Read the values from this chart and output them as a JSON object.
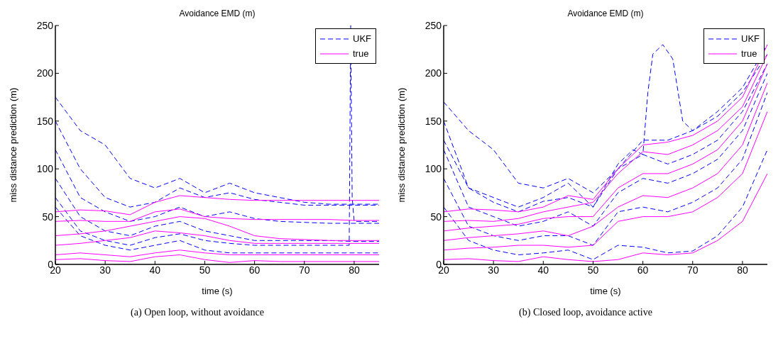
{
  "chart_data": [
    {
      "type": "line",
      "title": "Avoidance EMD (m)",
      "xlabel": "time (s)",
      "ylabel": "miss distance prediction (m)",
      "xlim": [
        20,
        85
      ],
      "xticks": [
        20,
        30,
        40,
        50,
        60,
        70,
        80
      ],
      "ylim": [
        0,
        250
      ],
      "yticks": [
        0,
        50,
        100,
        150,
        200,
        250
      ],
      "legend": "top right",
      "annotations": [
        "(a)  Open loop, without avoidance"
      ],
      "x": [
        20,
        25,
        30,
        35,
        40,
        45,
        50,
        55,
        60,
        65,
        70,
        75,
        80,
        85
      ],
      "series": [
        {
          "name": "UKF",
          "color": "#0000ff",
          "line_style": "dashed",
          "values": [
            175,
            140,
            125,
            90,
            80,
            90,
            75,
            85,
            75,
            70,
            65,
            63,
            63,
            63
          ]
        },
        {
          "color": "#0000ff",
          "line_style": "dashed",
          "values": [
            150,
            100,
            70,
            60,
            65,
            80,
            70,
            75,
            68,
            65,
            62,
            62,
            62,
            62
          ]
        },
        {
          "color": "#0000ff",
          "line_style": "dashed",
          "values": [
            120,
            70,
            55,
            45,
            50,
            60,
            50,
            55,
            48,
            45,
            44,
            43,
            43,
            43
          ]
        },
        {
          "color": "#0000ff",
          "line_style": "dashed",
          "values": [
            90,
            50,
            35,
            30,
            40,
            45,
            35,
            30,
            25,
            25,
            25,
            25,
            24,
            24
          ]
        },
        {
          "color": "#0000ff",
          "line_style": "dashed",
          "values": [
            60,
            30,
            20,
            15,
            20,
            25,
            15,
            12,
            12,
            12,
            12,
            12,
            12,
            12
          ]
        },
        {
          "color": "#0000ff",
          "line_style": "dashed",
          "x": [
            20,
            25,
            30,
            35,
            40,
            45,
            50,
            55,
            60,
            65,
            70,
            75,
            79,
            79.3,
            79.6,
            80,
            85
          ],
          "values": [
            70,
            35,
            25,
            20,
            28,
            32,
            25,
            22,
            20,
            20,
            20,
            20,
            20,
            250,
            70,
            45,
            45
          ]
        },
        {
          "name": "true",
          "color": "#ff00ff",
          "line_style": "solid",
          "values": [
            55,
            57,
            56,
            52,
            65,
            72,
            70,
            68,
            67,
            67,
            67,
            67,
            67,
            67
          ]
        },
        {
          "color": "#ff00ff",
          "line_style": "solid",
          "values": [
            45,
            46,
            45,
            45,
            55,
            58,
            50,
            48,
            47,
            47,
            47,
            47,
            46,
            46
          ]
        },
        {
          "color": "#ff00ff",
          "line_style": "solid",
          "values": [
            30,
            32,
            35,
            40,
            45,
            50,
            48,
            40,
            30,
            27,
            26,
            25,
            25,
            25
          ]
        },
        {
          "color": "#ff00ff",
          "line_style": "solid",
          "values": [
            20,
            22,
            25,
            28,
            35,
            33,
            30,
            25,
            22,
            22,
            22,
            22,
            22,
            22
          ]
        },
        {
          "color": "#ff00ff",
          "line_style": "solid",
          "values": [
            10,
            12,
            10,
            8,
            12,
            15,
            12,
            10,
            10,
            10,
            10,
            10,
            10,
            10
          ]
        },
        {
          "color": "#ff00ff",
          "line_style": "solid",
          "values": [
            5,
            6,
            4,
            3,
            8,
            10,
            5,
            2,
            4,
            3,
            3,
            3,
            3,
            3
          ]
        }
      ]
    },
    {
      "type": "line",
      "title": "Avoidance EMD (m)",
      "xlabel": "time (s)",
      "ylabel": "miss distance prediction (m)",
      "xlim": [
        20,
        85
      ],
      "xticks": [
        20,
        30,
        40,
        50,
        60,
        70,
        80
      ],
      "ylim": [
        0,
        250
      ],
      "yticks": [
        0,
        50,
        100,
        150,
        200,
        250
      ],
      "legend": "top right",
      "annotations": [
        "(b)  Closed loop, avoidance active"
      ],
      "x": [
        20,
        25,
        30,
        35,
        40,
        45,
        50,
        55,
        60,
        65,
        70,
        75,
        80,
        85
      ],
      "series": [
        {
          "name": "UKF",
          "color": "#0000ff",
          "line_style": "dashed",
          "values": [
            170,
            140,
            120,
            85,
            80,
            90,
            75,
            100,
            130,
            130,
            140,
            155,
            180,
            220
          ]
        },
        {
          "color": "#0000ff",
          "line_style": "dashed",
          "values": [
            150,
            80,
            70,
            60,
            70,
            85,
            60,
            100,
            115,
            105,
            115,
            130,
            160,
            210
          ]
        },
        {
          "color": "#0000ff",
          "line_style": "dashed",
          "values": [
            120,
            60,
            50,
            40,
            45,
            55,
            40,
            75,
            90,
            85,
            95,
            110,
            140,
            200
          ]
        },
        {
          "color": "#0000ff",
          "line_style": "dashed",
          "values": [
            90,
            40,
            30,
            25,
            30,
            30,
            20,
            55,
            60,
            55,
            65,
            80,
            110,
            180
          ]
        },
        {
          "color": "#0000ff",
          "line_style": "dashed",
          "values": [
            60,
            25,
            15,
            10,
            12,
            15,
            5,
            20,
            18,
            12,
            14,
            30,
            60,
            120
          ]
        },
        {
          "color": "#0000ff",
          "line_style": "dashed",
          "x": [
            20,
            25,
            30,
            35,
            40,
            45,
            50,
            55,
            58,
            60,
            61,
            62,
            64,
            66,
            68,
            70,
            75,
            80,
            85
          ],
          "values": [
            130,
            80,
            65,
            55,
            66,
            70,
            60,
            105,
            120,
            115,
            180,
            220,
            230,
            215,
            150,
            140,
            160,
            185,
            230
          ]
        },
        {
          "name": "true",
          "color": "#ff00ff",
          "line_style": "solid",
          "values": [
            55,
            58,
            57,
            55,
            60,
            72,
            68,
            100,
            125,
            128,
            135,
            150,
            175,
            230
          ]
        },
        {
          "color": "#ff00ff",
          "line_style": "solid",
          "values": [
            45,
            46,
            45,
            48,
            55,
            60,
            65,
            95,
            118,
            115,
            125,
            140,
            165,
            220
          ]
        },
        {
          "color": "#ff00ff",
          "line_style": "solid",
          "values": [
            35,
            38,
            40,
            42,
            48,
            50,
            50,
            80,
            95,
            95,
            105,
            120,
            150,
            210
          ]
        },
        {
          "color": "#ff00ff",
          "line_style": "solid",
          "values": [
            25,
            28,
            30,
            32,
            35,
            30,
            40,
            60,
            72,
            70,
            80,
            95,
            125,
            190
          ]
        },
        {
          "color": "#ff00ff",
          "line_style": "solid",
          "values": [
            15,
            17,
            18,
            20,
            20,
            18,
            20,
            45,
            50,
            50,
            55,
            70,
            95,
            160
          ]
        },
        {
          "color": "#ff00ff",
          "line_style": "solid",
          "values": [
            5,
            6,
            4,
            3,
            8,
            5,
            3,
            5,
            12,
            10,
            12,
            25,
            45,
            95
          ]
        }
      ]
    }
  ]
}
